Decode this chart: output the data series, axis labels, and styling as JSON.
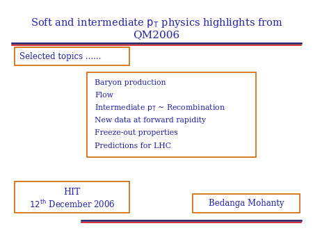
{
  "title_line1": "Soft and intermediate $\\mathrm{p_T}$ physics highlights from",
  "title_line2": "QM2006",
  "title_color": "#2222aa",
  "box_color": "#cc6600",
  "selected_topics_text": "Selected topics ......",
  "bullet_lines": [
    "Baryon production",
    "Flow",
    "Intermediate $\\mathrm{p_T}$ ~ Recombination",
    "New data at forward rapidity",
    "Freeze-out properties",
    "Predictions for LHC"
  ],
  "hit_line1": "HIT",
  "hit_line2": "$12^{\\mathrm{th}}$ December 2006",
  "author": "Bedanga Mohanty",
  "text_color": "#2222aa",
  "sep_dark": "#1a1a5e",
  "sep_red": "#cc1111"
}
